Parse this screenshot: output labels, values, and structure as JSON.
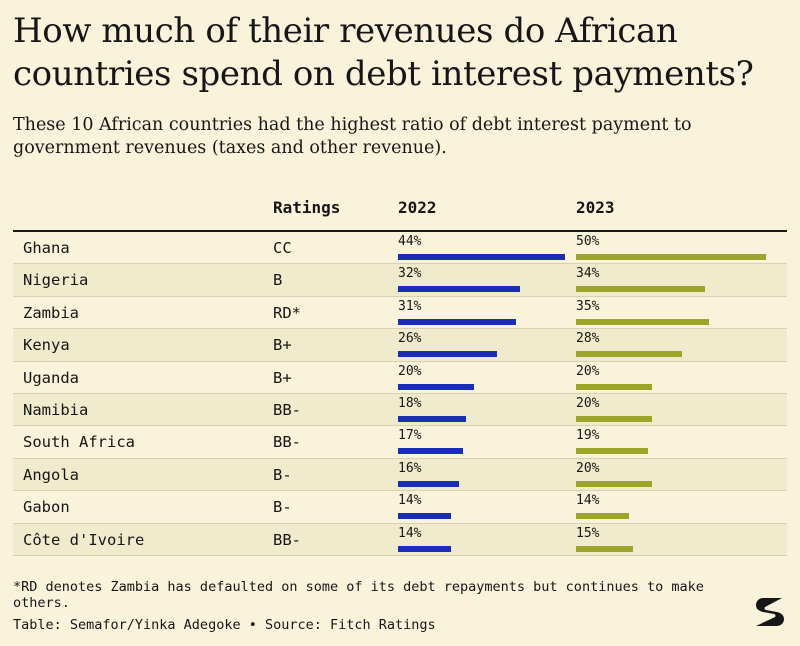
{
  "title": "How much of their revenues do African countries spend on debt interest payments?",
  "subtitle": "These 10 African countries had the highest ratio of debt interest payment to government revenues (taxes and other revenue).",
  "columns": {
    "ratings": "Ratings",
    "y2022": "2022",
    "y2023": "2023"
  },
  "colors": {
    "bar_2022": "#1a2db5",
    "bar_2023": "#9aa52a",
    "background": "#f9f3dc",
    "stripe": "#efebcc"
  },
  "chart_data": {
    "type": "table",
    "title": "How much of their revenues do African countries spend on debt interest payments?",
    "columns": [
      "",
      "Ratings",
      "2022",
      "2023"
    ],
    "unit": "%",
    "rows": [
      {
        "country": "Ghana",
        "rating": "CC",
        "v2022": 44,
        "v2023": 50
      },
      {
        "country": "Nigeria",
        "rating": "B",
        "v2022": 32,
        "v2023": 34
      },
      {
        "country": "Zambia",
        "rating": "RD*",
        "v2022": 31,
        "v2023": 35
      },
      {
        "country": "Kenya",
        "rating": "B+",
        "v2022": 26,
        "v2023": 28
      },
      {
        "country": "Uganda",
        "rating": "B+",
        "v2022": 20,
        "v2023": 20
      },
      {
        "country": "Namibia",
        "rating": "BB-",
        "v2022": 18,
        "v2023": 20
      },
      {
        "country": "South Africa",
        "rating": "BB-",
        "v2022": 17,
        "v2023": 19
      },
      {
        "country": "Angola",
        "rating": "B-",
        "v2022": 16,
        "v2023": 20
      },
      {
        "country": "Gabon",
        "rating": "B-",
        "v2022": 14,
        "v2023": 14
      },
      {
        "country": "Côte d'Ivoire",
        "rating": "BB-",
        "v2022": 14,
        "v2023": 15
      }
    ]
  },
  "footnote": "*RD denotes Zambia has defaulted on some of its debt repayments but continues to make others.",
  "source": "Table: Semafor/Yinka Adegoke • Source: Fitch Ratings",
  "logo_text": "S"
}
